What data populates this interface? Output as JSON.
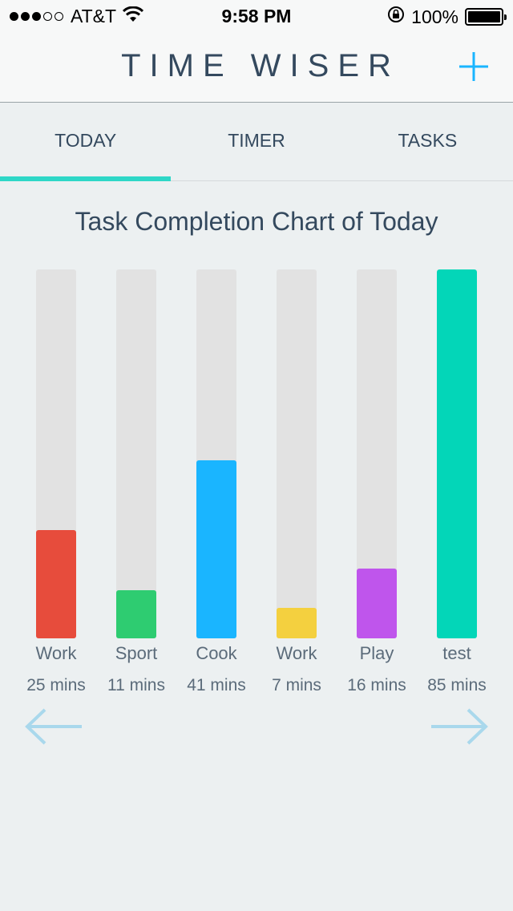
{
  "status_bar": {
    "carrier": "AT&T",
    "time": "9:58 PM",
    "battery": "100%",
    "signal_bars": 3,
    "signal_total": 5
  },
  "nav": {
    "title": "TIME WISER",
    "add_icon": "plus-icon"
  },
  "tabs": [
    {
      "label": "TODAY",
      "active": true
    },
    {
      "label": "TIMER",
      "active": false
    },
    {
      "label": "TASKS",
      "active": false
    }
  ],
  "accent_color": "#2ed7c7",
  "chart_data": {
    "type": "bar",
    "title": "Task Completion Chart of Today",
    "categories": [
      "Work",
      "Sport",
      "Cook",
      "Work",
      "Play",
      "test"
    ],
    "values": [
      25,
      11,
      41,
      7,
      16,
      85
    ],
    "value_labels": [
      "25 mins",
      "11 mins",
      "41 mins",
      "7 mins",
      "16 mins",
      "85 mins"
    ],
    "colors": [
      "#e74c3c",
      "#2ecc71",
      "#1ab5ff",
      "#f4d03f",
      "#bf55ec",
      "#03d6b8"
    ],
    "ylim": [
      0,
      85
    ],
    "units": "mins"
  },
  "pager": {
    "prev_icon": "arrow-left-icon",
    "next_icon": "arrow-right-icon"
  }
}
